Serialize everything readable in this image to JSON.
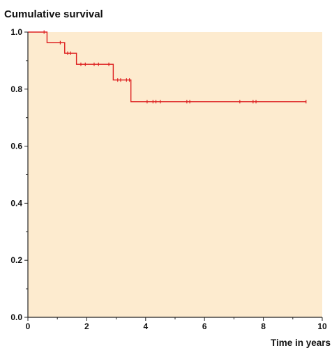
{
  "chart_data": {
    "type": "line",
    "title": "Cumulative survival",
    "xlabel": "Time in years",
    "ylabel": "",
    "xlim": [
      0,
      10
    ],
    "ylim": [
      0,
      1
    ],
    "x_ticks": [
      0,
      2,
      4,
      6,
      8,
      10
    ],
    "x_tick_labels": [
      "0",
      "2",
      "4",
      "6",
      "8",
      "10"
    ],
    "y_ticks": [
      0,
      0.2,
      0.4,
      0.6,
      0.8,
      1.0
    ],
    "y_tick_labels": [
      "0.0",
      "0.2",
      "0.4",
      "0.6",
      "0.8",
      "1.0"
    ],
    "grid": false,
    "legend": "none",
    "colors": {
      "plot_background": "#fdebcf",
      "series": "#dd2020",
      "axis": "#222222"
    },
    "series": [
      {
        "step_points": [
          {
            "x": 0,
            "y": 1.0
          },
          {
            "x": 0.65,
            "y": 0.963
          },
          {
            "x": 1.25,
            "y": 0.926
          },
          {
            "x": 1.65,
            "y": 0.887
          },
          {
            "x": 2.9,
            "y": 0.832
          },
          {
            "x": 3.5,
            "y": 0.756
          },
          {
            "x": 9.45,
            "y": 0.756
          }
        ],
        "censored": [
          {
            "x": 0.55,
            "y": 1.0
          },
          {
            "x": 1.1,
            "y": 0.963
          },
          {
            "x": 1.35,
            "y": 0.926
          },
          {
            "x": 1.45,
            "y": 0.926
          },
          {
            "x": 1.8,
            "y": 0.887
          },
          {
            "x": 1.95,
            "y": 0.887
          },
          {
            "x": 2.25,
            "y": 0.887
          },
          {
            "x": 2.4,
            "y": 0.887
          },
          {
            "x": 2.75,
            "y": 0.887
          },
          {
            "x": 3.05,
            "y": 0.832
          },
          {
            "x": 3.15,
            "y": 0.832
          },
          {
            "x": 3.35,
            "y": 0.832
          },
          {
            "x": 3.45,
            "y": 0.832
          },
          {
            "x": 4.05,
            "y": 0.756
          },
          {
            "x": 4.25,
            "y": 0.756
          },
          {
            "x": 4.35,
            "y": 0.756
          },
          {
            "x": 4.5,
            "y": 0.756
          },
          {
            "x": 5.4,
            "y": 0.756
          },
          {
            "x": 5.5,
            "y": 0.756
          },
          {
            "x": 7.2,
            "y": 0.756
          },
          {
            "x": 7.65,
            "y": 0.756
          },
          {
            "x": 7.75,
            "y": 0.756
          },
          {
            "x": 9.45,
            "y": 0.756
          }
        ]
      }
    ]
  }
}
